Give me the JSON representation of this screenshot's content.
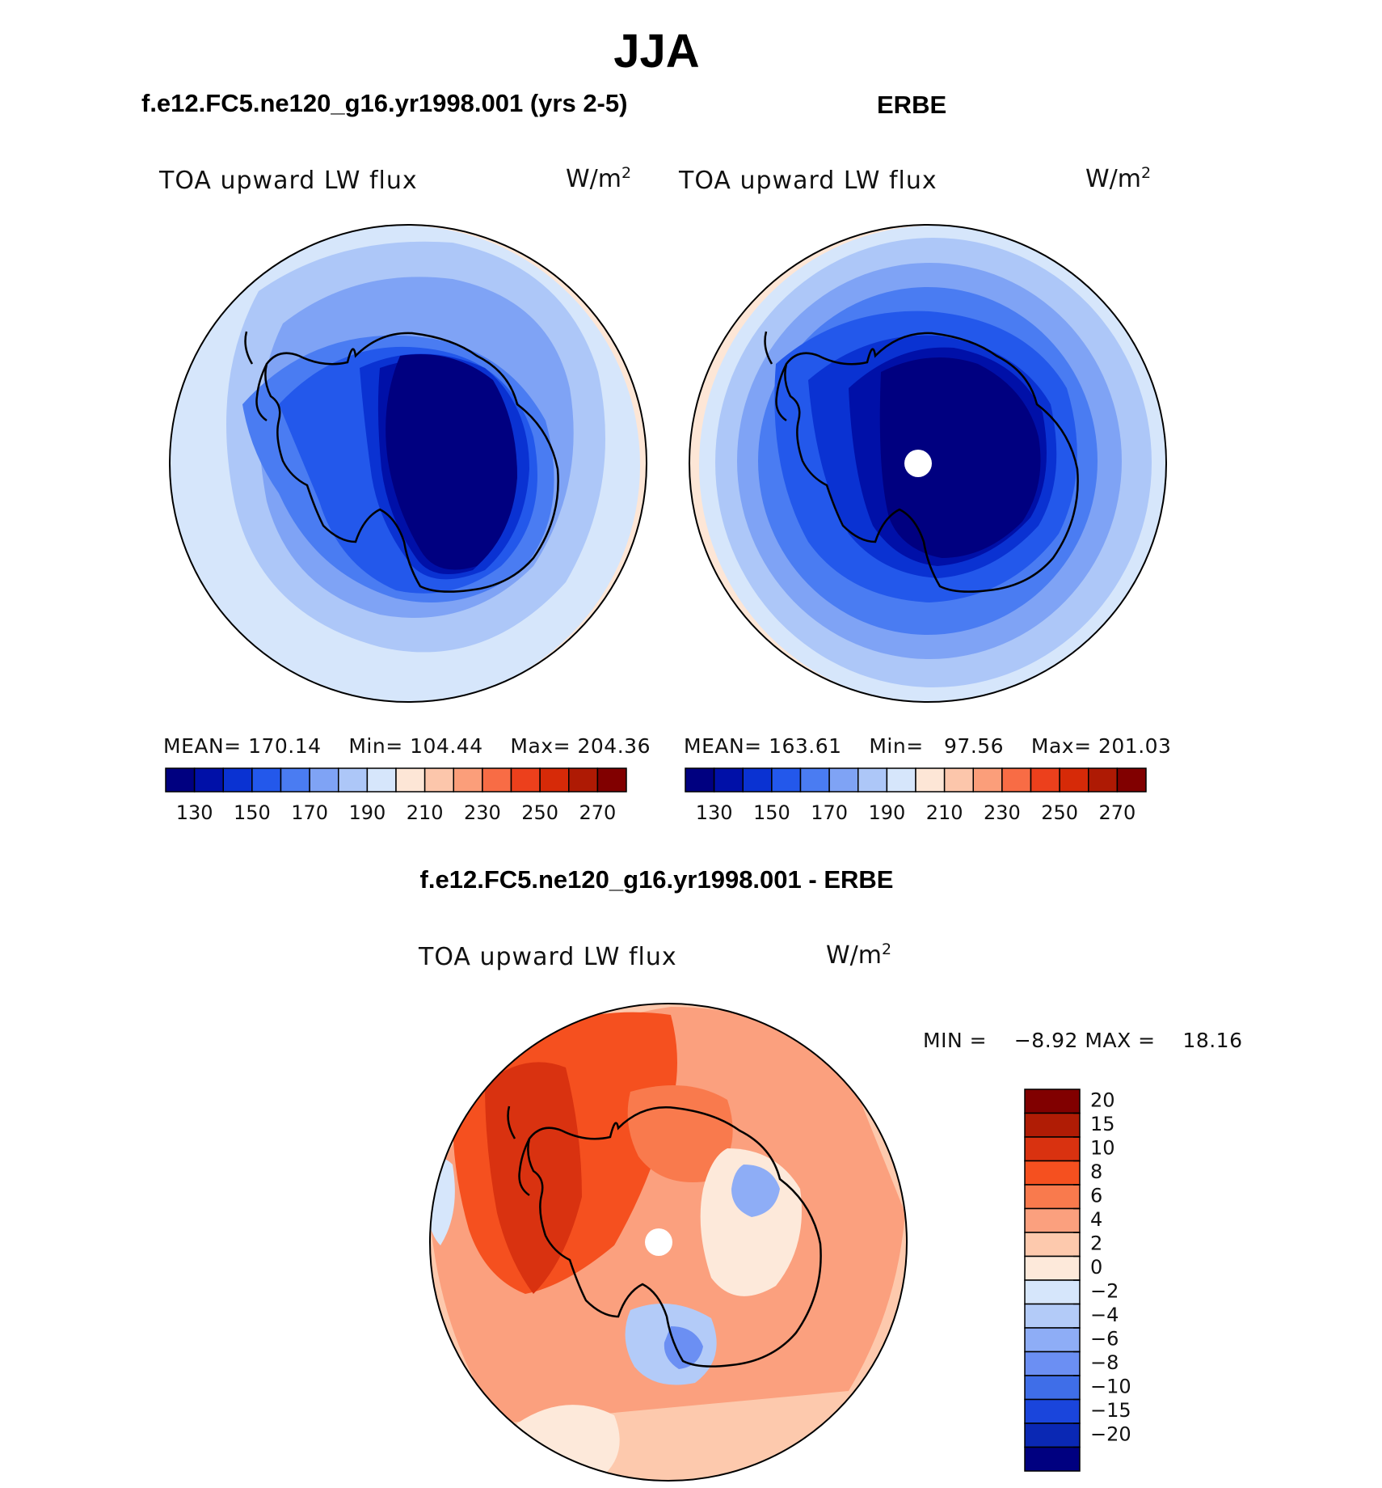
{
  "title": "JJA",
  "left_panel": {
    "case": "f.e12.FC5.ne120_g16.yr1998.001 (yrs 2-5)",
    "variable": "TOA upward LW flux",
    "units": "W/m",
    "units_sup": "2",
    "stats": {
      "mean_label": "MEAN=",
      "mean": "170.14",
      "min_label": "Min=",
      "min": "104.44",
      "max_label": "Max=",
      "max": "204.36"
    }
  },
  "right_panel": {
    "case": "ERBE",
    "variable": "TOA upward LW flux",
    "units": "W/m",
    "units_sup": "2",
    "stats": {
      "mean_label": "MEAN=",
      "mean": "163.61",
      "min_label": "Min=",
      "min": "97.56",
      "max_label": "Max=",
      "max": "201.03"
    }
  },
  "diff_panel": {
    "case": "f.e12.FC5.ne120_g16.yr1998.001 - ERBE",
    "variable": "TOA upward LW flux",
    "units": "W/m",
    "units_sup": "2",
    "minmax": {
      "min_label": "MIN =",
      "min": "−8.92",
      "max_label": "MAX =",
      "max": "18.16"
    }
  },
  "chart_data": [
    {
      "type": "heatmap",
      "projection": "south-polar-stereographic",
      "title": "f.e12.FC5.ne120_g16.yr1998.001 (yrs 2-5)",
      "colorbar": {
        "orientation": "horizontal",
        "levels": [
          130,
          140,
          150,
          160,
          170,
          180,
          190,
          200,
          210,
          220,
          230,
          240,
          250,
          260,
          270
        ],
        "tick_labels": [
          "130",
          "150",
          "170",
          "190",
          "210",
          "230",
          "250",
          "270"
        ],
        "colors": [
          "#000080",
          "#0010a8",
          "#0a32d2",
          "#2358eb",
          "#4a7cf2",
          "#7fa3f5",
          "#adc7f8",
          "#d6e6fb",
          "#fde6d6",
          "#fcc6ab",
          "#fb9e7a",
          "#f86c45",
          "#ec401c",
          "#d62a08",
          "#ae1a04",
          "#810000"
        ]
      },
      "mean": 170.14,
      "min": 104.44,
      "max": 204.36
    },
    {
      "type": "heatmap",
      "projection": "south-polar-stereographic",
      "title": "ERBE",
      "colorbar": {
        "orientation": "horizontal",
        "levels": [
          130,
          140,
          150,
          160,
          170,
          180,
          190,
          200,
          210,
          220,
          230,
          240,
          250,
          260,
          270
        ],
        "tick_labels": [
          "130",
          "150",
          "170",
          "190",
          "210",
          "230",
          "250",
          "270"
        ],
        "colors": [
          "#000080",
          "#0010a8",
          "#0a32d2",
          "#2358eb",
          "#4a7cf2",
          "#7fa3f5",
          "#adc7f8",
          "#d6e6fb",
          "#fde6d6",
          "#fcc6ab",
          "#fb9e7a",
          "#f86c45",
          "#ec401c",
          "#d62a08",
          "#ae1a04",
          "#810000"
        ]
      },
      "mean": 163.61,
      "min": 97.56,
      "max": 201.03
    },
    {
      "type": "heatmap",
      "projection": "south-polar-stereographic",
      "title": "f.e12.FC5.ne120_g16.yr1998.001 - ERBE",
      "colorbar": {
        "orientation": "vertical",
        "tick_labels": [
          "20",
          "15",
          "10",
          "8",
          "6",
          "4",
          "2",
          "0",
          "−2",
          "−4",
          "−6",
          "−8",
          "−10",
          "−15",
          "−20"
        ],
        "colors_top_to_bottom": [
          "#810000",
          "#b01c05",
          "#d93210",
          "#f5501f",
          "#f97a4d",
          "#fba07e",
          "#fdc9ad",
          "#fde9da",
          "#d6e6fb",
          "#b3cbf8",
          "#8eadf6",
          "#6b8ff3",
          "#3f6ee8",
          "#1a45dc",
          "#0a28b4",
          "#000080"
        ]
      },
      "min": -8.92,
      "max": 18.16
    }
  ]
}
